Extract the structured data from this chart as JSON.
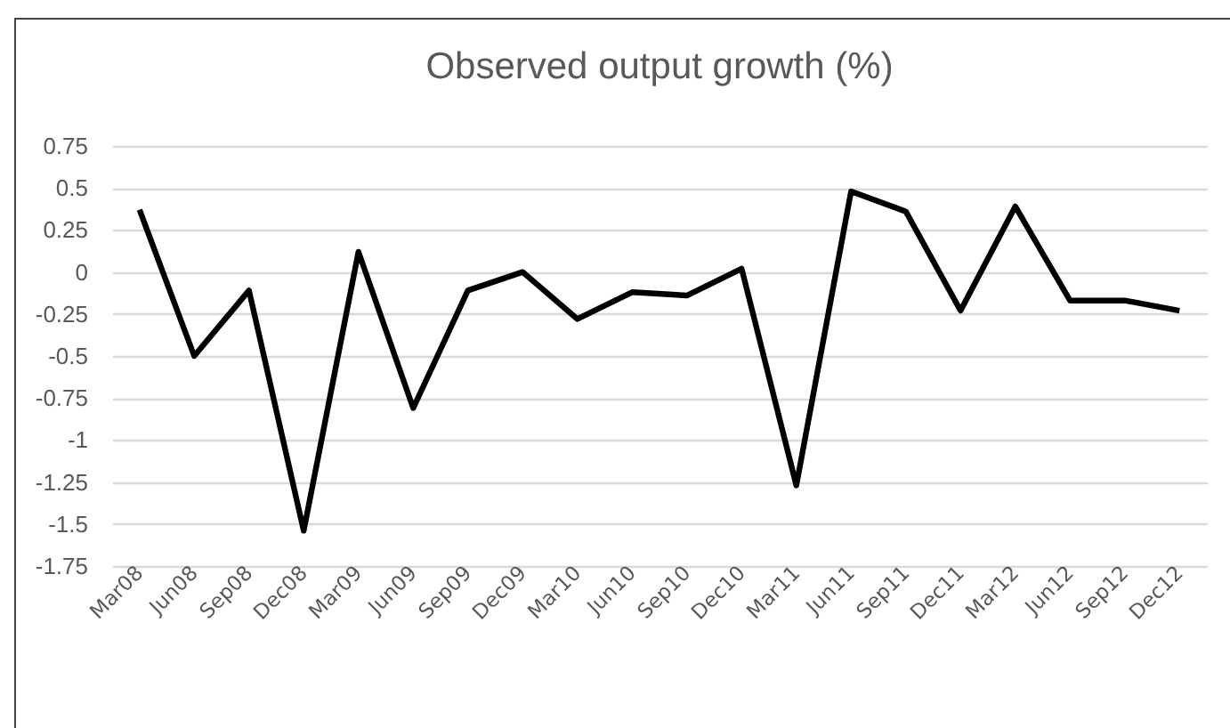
{
  "chart_data": {
    "type": "line",
    "title": "Observed output growth (%)",
    "categories": [
      "Mar08",
      "Jun08",
      "Sep08",
      "Dec08",
      "Mar09",
      "Jun09",
      "Sep09",
      "Dec09",
      "Mar10",
      "Jun10",
      "Sep10",
      "Dec10",
      "Mar11",
      "Jun11",
      "Sep11",
      "Dec11",
      "Mar12",
      "Jun12",
      "Sep12",
      "Dec12"
    ],
    "series": [
      {
        "color": "#000000",
        "values": [
          0.37,
          -0.5,
          -0.11,
          -1.54,
          0.12,
          -0.81,
          -0.11,
          0.0,
          -0.28,
          -0.12,
          -0.14,
          0.02,
          -1.27,
          0.48,
          0.36,
          -0.23,
          0.39,
          -0.17,
          -0.17,
          -0.23
        ]
      }
    ],
    "ylim": [
      -1.75,
      0.75
    ],
    "yticks": [
      0.75,
      0.5,
      0.25,
      0,
      -0.25,
      -0.5,
      -0.75,
      -1,
      -1.25,
      -1.5,
      -1.75
    ],
    "grid": "y",
    "legend": false,
    "marker": "none",
    "line_style": "solid"
  }
}
